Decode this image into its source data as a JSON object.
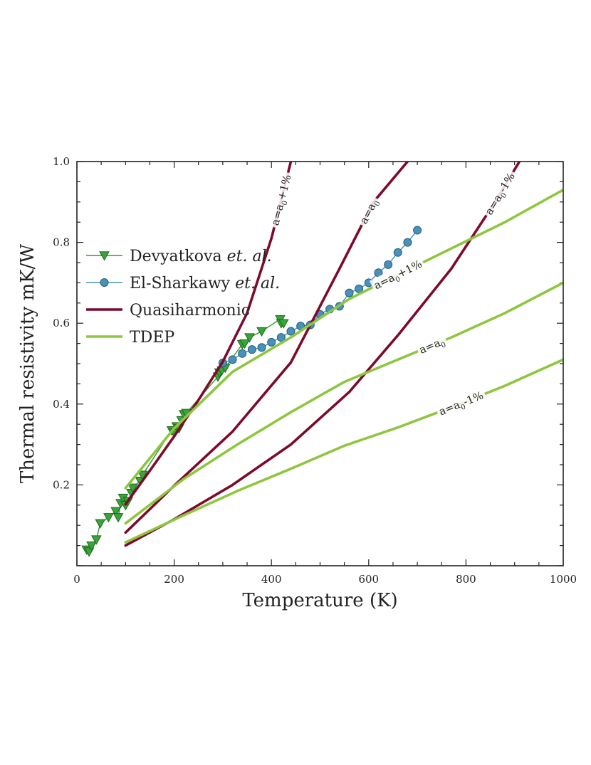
{
  "chart_data": {
    "type": "line",
    "title": "",
    "xlabel": "Temperature (K)",
    "ylabel": "Thermal resistivity mK/W",
    "xlim": [
      0,
      1000
    ],
    "ylim": [
      0,
      1.0
    ],
    "xticks": [
      0,
      200,
      400,
      600,
      800,
      1000
    ],
    "yticks": [
      0.2,
      0.4,
      0.6,
      0.8,
      1.0
    ],
    "xtick_labels": [
      "0",
      "200",
      "400",
      "600",
      "800",
      "1000"
    ],
    "ytick_labels": [
      "0.2",
      "0.4",
      "0.6",
      "0.8",
      "1.0"
    ],
    "legend": {
      "placement": "center-left",
      "entries": [
        {
          "label": "Devyatkova",
          "italic": "et. al.",
          "color": "#2e9a2e",
          "marker": "triangle-down"
        },
        {
          "label": "El-Sharkawy",
          "italic": "et. al.",
          "color": "#4a90b8",
          "marker": "circle"
        },
        {
          "label": "Quasiharmonic",
          "italic": "",
          "color": "#7d0a2a",
          "marker": "none"
        },
        {
          "label": "TDEP",
          "italic": "",
          "color": "#8ec63f",
          "marker": "none"
        }
      ]
    },
    "series": [
      {
        "name": "Devyatkova et. al.",
        "kind": "experiment",
        "marker": "triangle-down",
        "color": "#2e9a2e",
        "points": [
          [
            20,
            0.04
          ],
          [
            25,
            0.035
          ],
          [
            30,
            0.05
          ],
          [
            40,
            0.065
          ],
          [
            48,
            0.105
          ],
          [
            65,
            0.12
          ],
          [
            80,
            0.135
          ],
          [
            85,
            0.12
          ],
          [
            90,
            0.155
          ],
          [
            95,
            0.168
          ],
          [
            100,
            0.15
          ],
          [
            105,
            0.16
          ],
          [
            112,
            0.18
          ],
          [
            115,
            0.193
          ],
          [
            130,
            0.21
          ],
          [
            135,
            0.225
          ],
          [
            195,
            0.335
          ],
          [
            200,
            0.33
          ],
          [
            205,
            0.345
          ],
          [
            210,
            0.34
          ],
          [
            215,
            0.36
          ],
          [
            220,
            0.375
          ],
          [
            225,
            0.378
          ],
          [
            290,
            0.468
          ],
          [
            293,
            0.478
          ],
          [
            298,
            0.483
          ],
          [
            305,
            0.49
          ],
          [
            340,
            0.548
          ],
          [
            345,
            0.55
          ],
          [
            355,
            0.565
          ],
          [
            380,
            0.58
          ],
          [
            418,
            0.61
          ],
          [
            420,
            0.6
          ],
          [
            425,
            0.6
          ]
        ]
      },
      {
        "name": "El-Sharkawy et. al.",
        "kind": "experiment",
        "marker": "circle",
        "color": "#4a90b8",
        "points": [
          [
            300,
            0.502
          ],
          [
            320,
            0.51
          ],
          [
            340,
            0.525
          ],
          [
            360,
            0.535
          ],
          [
            380,
            0.54
          ],
          [
            400,
            0.553
          ],
          [
            420,
            0.565
          ],
          [
            440,
            0.58
          ],
          [
            460,
            0.593
          ],
          [
            480,
            0.596
          ],
          [
            500,
            0.622
          ],
          [
            520,
            0.635
          ],
          [
            540,
            0.642
          ],
          [
            560,
            0.675
          ],
          [
            580,
            0.685
          ],
          [
            600,
            0.7
          ],
          [
            620,
            0.725
          ],
          [
            640,
            0.745
          ],
          [
            660,
            0.775
          ],
          [
            680,
            0.8
          ],
          [
            700,
            0.83
          ]
        ]
      },
      {
        "name": "Quasiharmonic a=a0+1%",
        "kind": "theory",
        "color": "#7d0a2a",
        "label": "a=a0+1%",
        "label_at": 420,
        "points": [
          [
            100,
            0.152
          ],
          [
            150,
            0.235
          ],
          [
            200,
            0.32
          ],
          [
            250,
            0.41
          ],
          [
            300,
            0.505
          ],
          [
            350,
            0.625
          ],
          [
            400,
            0.81
          ],
          [
            440,
            1.0
          ]
        ]
      },
      {
        "name": "Quasiharmonic a=a0",
        "kind": "theory",
        "color": "#7d0a2a",
        "label": "a=a0",
        "label_at": 600,
        "points": [
          [
            100,
            0.082
          ],
          [
            200,
            0.198
          ],
          [
            320,
            0.332
          ],
          [
            440,
            0.503
          ],
          [
            540,
            0.735
          ],
          [
            610,
            0.9
          ],
          [
            680,
            1.0
          ]
        ]
      },
      {
        "name": "Quasiharmonic a=a0-1%",
        "kind": "theory",
        "color": "#7d0a2a",
        "label": "a=a0-1%",
        "label_at": 870,
        "points": [
          [
            100,
            0.05
          ],
          [
            200,
            0.115
          ],
          [
            320,
            0.2
          ],
          [
            440,
            0.3
          ],
          [
            560,
            0.43
          ],
          [
            660,
            0.57
          ],
          [
            770,
            0.735
          ],
          [
            860,
            0.9
          ],
          [
            910,
            1.0
          ]
        ]
      },
      {
        "name": "TDEP a=a0+1%",
        "kind": "theory",
        "color": "#8ec63f",
        "label": "a=a0+1%",
        "label_at": 660,
        "points": [
          [
            100,
            0.192
          ],
          [
            200,
            0.34
          ],
          [
            320,
            0.48
          ],
          [
            440,
            0.565
          ],
          [
            560,
            0.66
          ],
          [
            660,
            0.72
          ],
          [
            770,
            0.785
          ],
          [
            880,
            0.85
          ],
          [
            1000,
            0.93
          ]
        ]
      },
      {
        "name": "TDEP a=a0",
        "kind": "theory",
        "color": "#8ec63f",
        "label": "a=a0",
        "label_at": 730,
        "points": [
          [
            100,
            0.105
          ],
          [
            220,
            0.215
          ],
          [
            330,
            0.3
          ],
          [
            440,
            0.38
          ],
          [
            550,
            0.455
          ],
          [
            660,
            0.51
          ],
          [
            770,
            0.565
          ],
          [
            880,
            0.625
          ],
          [
            1000,
            0.7
          ]
        ]
      },
      {
        "name": "TDEP a=a0-1%",
        "kind": "theory",
        "color": "#8ec63f",
        "label": "a=a0-1%",
        "label_at": 790,
        "points": [
          [
            100,
            0.058
          ],
          [
            220,
            0.125
          ],
          [
            330,
            0.185
          ],
          [
            440,
            0.24
          ],
          [
            550,
            0.297
          ],
          [
            660,
            0.342
          ],
          [
            770,
            0.392
          ],
          [
            880,
            0.445
          ],
          [
            1000,
            0.51
          ]
        ]
      }
    ]
  }
}
